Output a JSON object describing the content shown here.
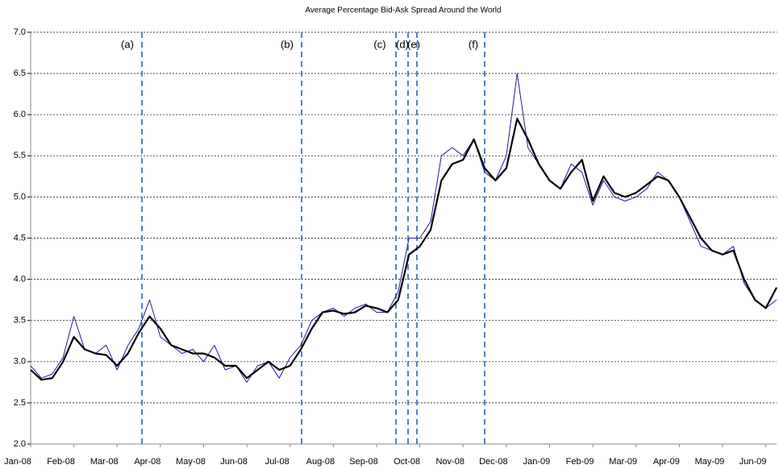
{
  "chart_data": {
    "type": "line",
    "title": "Average Percentage Bid-Ask Spread Around the World",
    "categories": [
      "Jan-08",
      null,
      null,
      null,
      "Feb-08",
      null,
      null,
      null,
      "Mar-08",
      null,
      null,
      null,
      "Apr-08",
      null,
      null,
      null,
      "May-08",
      null,
      null,
      null,
      "Jun-08",
      null,
      null,
      null,
      "Jul-08",
      null,
      null,
      null,
      "Aug-08",
      null,
      null,
      null,
      "Sep-08",
      null,
      null,
      null,
      "Oct-08",
      null,
      null,
      null,
      "Nov-08",
      null,
      null,
      null,
      "Dec-08",
      null,
      null,
      null,
      "Jan-09",
      null,
      null,
      null,
      "Feb-09",
      null,
      null,
      null,
      "Mar-09",
      null,
      null,
      null,
      "Apr-09",
      null,
      null,
      null,
      "May-09",
      null,
      null,
      null,
      "Jun-09",
      null
    ],
    "series": [
      {
        "color": "#1c1c9c",
        "values": [
          2.95,
          2.8,
          2.85,
          3.05,
          3.55,
          3.15,
          3.1,
          3.2,
          2.9,
          3.2,
          3.4,
          3.75,
          3.3,
          3.2,
          3.1,
          3.15,
          3.0,
          3.2,
          2.9,
          2.95,
          2.75,
          2.95,
          3.0,
          2.8,
          3.05,
          3.2,
          3.5,
          3.6,
          3.65,
          3.55,
          3.65,
          3.7,
          3.6,
          3.6,
          3.85,
          4.5,
          4.5,
          4.7,
          5.5,
          5.6,
          5.5,
          5.7,
          5.3,
          5.2,
          5.5,
          6.5,
          5.6,
          5.4,
          5.2,
          5.1,
          5.4,
          5.3,
          4.9,
          5.2,
          5.0,
          4.95,
          5.0,
          5.1,
          5.3,
          5.2,
          5.0,
          4.7,
          4.4,
          4.35,
          4.3,
          4.4,
          3.95,
          3.75,
          3.65,
          3.75
        ]
      },
      {
        "color": "#000000",
        "values": [
          2.9,
          2.78,
          2.8,
          3.0,
          3.3,
          3.15,
          3.1,
          3.08,
          2.95,
          3.1,
          3.35,
          3.55,
          3.4,
          3.2,
          3.15,
          3.1,
          3.1,
          3.05,
          2.95,
          2.95,
          2.8,
          2.9,
          3.0,
          2.9,
          2.95,
          3.15,
          3.4,
          3.6,
          3.62,
          3.58,
          3.6,
          3.68,
          3.65,
          3.6,
          3.75,
          4.3,
          4.4,
          4.6,
          5.2,
          5.4,
          5.45,
          5.7,
          5.35,
          5.2,
          5.35,
          5.95,
          5.7,
          5.4,
          5.2,
          5.1,
          5.3,
          5.45,
          4.95,
          5.25,
          5.05,
          5.0,
          5.05,
          5.15,
          5.25,
          5.2,
          5.0,
          4.75,
          4.5,
          4.35,
          4.3,
          4.35,
          4.0,
          3.75,
          3.65,
          3.9
        ]
      }
    ],
    "annotations": [
      "(a)",
      "(b)",
      "(c)",
      "(d)",
      "(e)",
      "(f)"
    ],
    "ylim": [
      2,
      7
    ],
    "yticks": [
      {
        "value": 2,
        "label": "2.0"
      },
      2.5,
      {
        "value": 3,
        "label": "3.0"
      },
      3.5,
      {
        "value": 4,
        "label": "4.0"
      },
      4.5,
      {
        "value": 5,
        "label": "5.0"
      },
      5.5,
      {
        "value": 6,
        "label": "6.0"
      },
      6.5,
      {
        "value": 7,
        "label": "7.0"
      }
    ],
    "grid": true
  }
}
